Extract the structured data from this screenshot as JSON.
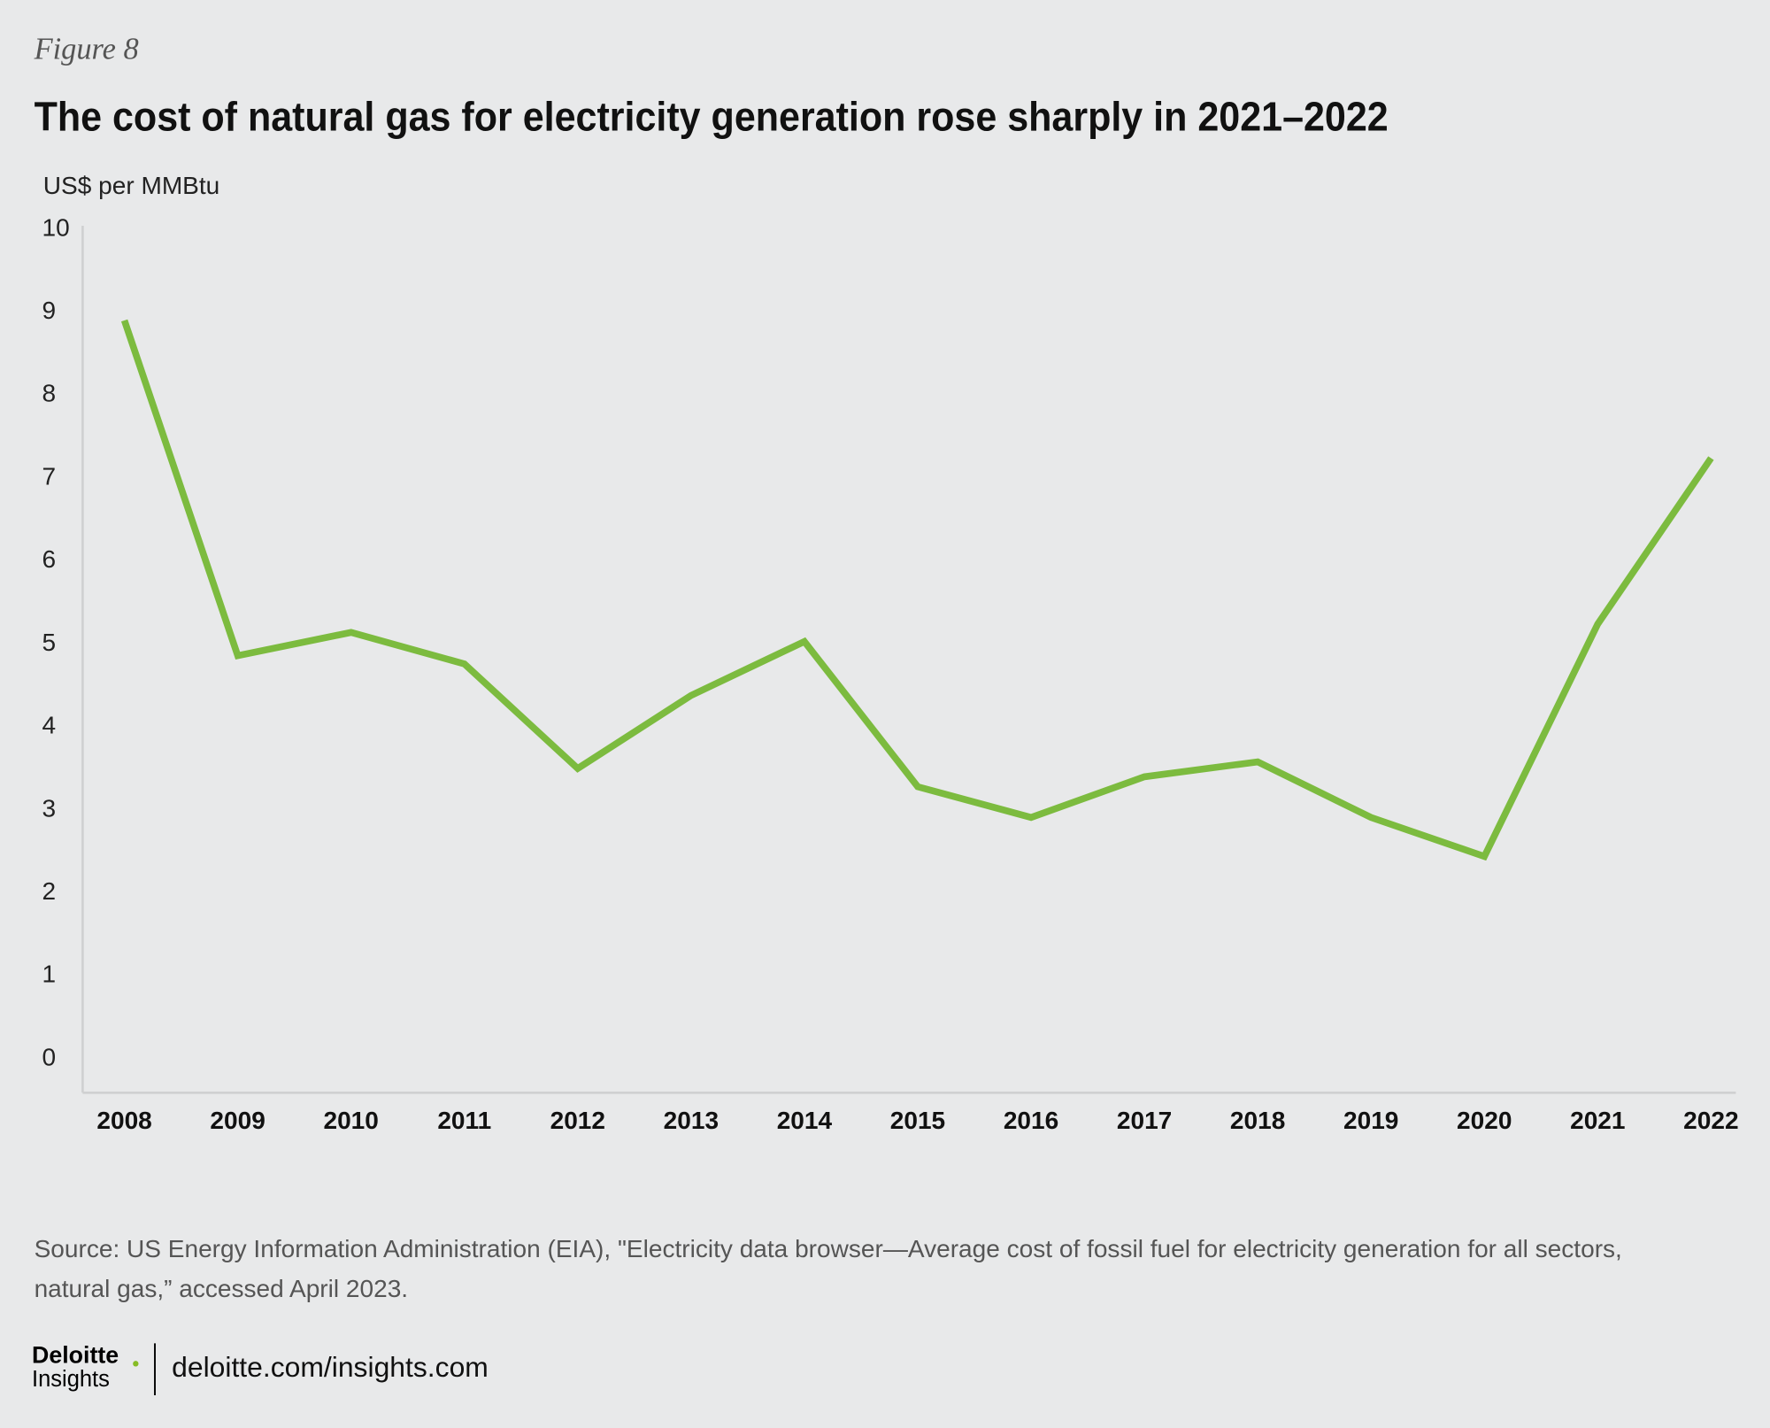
{
  "figure_label": "Figure 8",
  "chart_data": {
    "type": "line",
    "title": "The cost of natural gas for electricity generation rose sharply in 2021–2022",
    "y_label": "US$ per MMBtu",
    "categories": [
      "2008",
      "2009",
      "2010",
      "2011",
      "2012",
      "2013",
      "2014",
      "2015",
      "2016",
      "2017",
      "2018",
      "2019",
      "2020",
      "2021",
      "2022"
    ],
    "values": [
      8.9,
      4.86,
      5.14,
      4.76,
      3.5,
      4.38,
      5.03,
      3.28,
      2.91,
      3.4,
      3.58,
      2.91,
      2.44,
      5.24,
      7.24
    ],
    "color": "#7cbb3f",
    "ylim": [
      0,
      10
    ],
    "yticks": [
      0,
      1,
      2,
      3,
      4,
      5,
      6,
      7,
      8,
      9,
      10
    ]
  },
  "source": [
    "Source: US Energy Information Administration (EIA), \"Electricity data browser—Average cost of fossil fuel for electricity generation for all sectors,",
    "natural gas,” accessed April 2023."
  ],
  "footer": {
    "brand": "Deloitte",
    "sub_brand": "Insights",
    "url": "deloitte.com/insights.com"
  }
}
